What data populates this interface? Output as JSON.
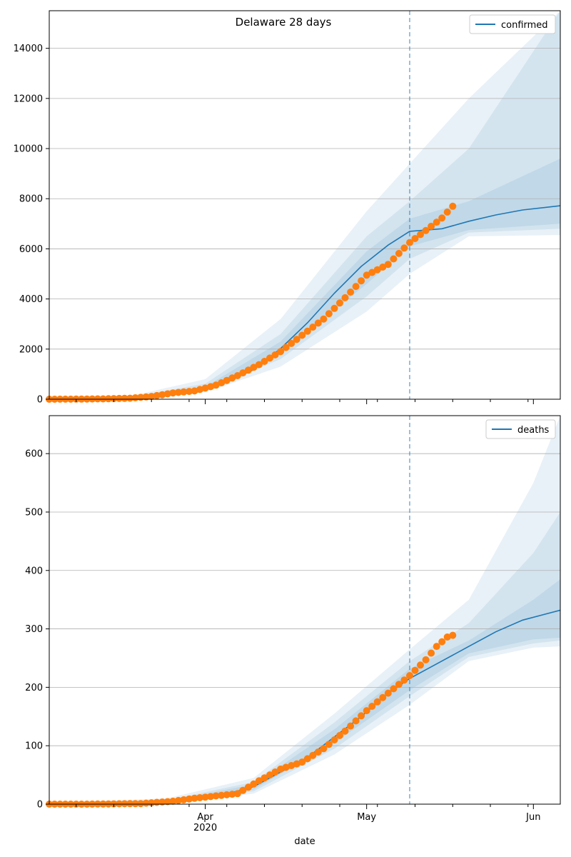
{
  "chart_data": [
    {
      "panel": "confirmed",
      "type": "line",
      "title": "Delaware 28 days",
      "xlabel": "",
      "ylabel": "",
      "x_range": [
        "2020-03-03",
        "2020-06-06"
      ],
      "ylim": [
        0,
        15500
      ],
      "yticks": [
        0,
        2000,
        4000,
        6000,
        8000,
        10000,
        12000,
        14000
      ],
      "grid": "horizontal",
      "legend": {
        "position": "top-right",
        "entries": [
          {
            "label": "confirmed",
            "color": "#1f77b4"
          }
        ]
      },
      "vline": {
        "date": "2020-05-09",
        "color": "#1f77b4",
        "style": "dashed"
      },
      "series": [
        {
          "name": "confirmed",
          "kind": "line",
          "color": "#1f77b4",
          "x": [
            "2020-03-03",
            "2020-03-11",
            "2020-03-18",
            "2020-03-25",
            "2020-04-01",
            "2020-04-05",
            "2020-04-10",
            "2020-04-15",
            "2020-04-20",
            "2020-04-25",
            "2020-04-30",
            "2020-05-05",
            "2020-05-09",
            "2020-05-15",
            "2020-05-20",
            "2020-05-25",
            "2020-05-30",
            "2020-06-06"
          ],
          "y": [
            0,
            10,
            50,
            200,
            420,
            680,
            1180,
            2020,
            3050,
            4230,
            5300,
            6150,
            6700,
            6800,
            7100,
            7350,
            7550,
            7720
          ]
        },
        {
          "name": "",
          "kind": "scatter",
          "color": "#ff7f0e",
          "x": [
            "2020-03-03",
            "2020-03-08",
            "2020-03-13",
            "2020-03-18",
            "2020-03-22",
            "2020-03-26",
            "2020-03-30",
            "2020-04-03",
            "2020-04-07",
            "2020-04-11",
            "2020-04-15",
            "2020-04-19",
            "2020-04-23",
            "2020-04-27",
            "2020-05-01",
            "2020-05-05",
            "2020-05-09",
            "2020-05-12",
            "2020-05-15",
            "2020-05-17"
          ],
          "y": [
            0,
            5,
            15,
            40,
            110,
            250,
            330,
            560,
            940,
            1380,
            1900,
            2550,
            3200,
            4050,
            4950,
            5380,
            6250,
            6730,
            7230,
            7700
          ]
        }
      ],
      "bands": [
        {
          "x": [
            "2020-03-03",
            "2020-03-18",
            "2020-04-01",
            "2020-04-15",
            "2020-05-01",
            "2020-05-09",
            "2020-05-20",
            "2020-06-06"
          ],
          "lower": [
            0,
            30,
            280,
            1300,
            3500,
            5000,
            6500,
            6550
          ],
          "upper": [
            20,
            120,
            800,
            3200,
            7500,
            9400,
            12000,
            15500
          ]
        },
        {
          "x": [
            "2020-03-03",
            "2020-03-18",
            "2020-04-01",
            "2020-04-15",
            "2020-05-01",
            "2020-05-09",
            "2020-05-20",
            "2020-06-06"
          ],
          "lower": [
            0,
            40,
            340,
            1600,
            4100,
            5600,
            6650,
            6800
          ],
          "upper": [
            15,
            90,
            620,
            2600,
            6500,
            7900,
            10000,
            15500
          ]
        },
        {
          "x": [
            "2020-03-03",
            "2020-03-18",
            "2020-04-01",
            "2020-04-15",
            "2020-05-01",
            "2020-05-09",
            "2020-05-20",
            "2020-06-06"
          ],
          "lower": [
            0,
            45,
            380,
            1800,
            4600,
            6100,
            6750,
            7000
          ],
          "upper": [
            12,
            70,
            500,
            2300,
            5900,
            7200,
            7900,
            9600
          ]
        }
      ]
    },
    {
      "panel": "deaths",
      "type": "line",
      "title": "",
      "xlabel": "date",
      "ylabel": "",
      "x_range": [
        "2020-03-03",
        "2020-06-06"
      ],
      "ylim": [
        0,
        665
      ],
      "yticks": [
        0,
        100,
        200,
        300,
        400,
        500,
        600
      ],
      "xticks": [
        {
          "date": "2020-04-01",
          "label": "Apr",
          "sublabel": "2020"
        },
        {
          "date": "2020-05-01",
          "label": "May",
          "sublabel": ""
        },
        {
          "date": "2020-06-01",
          "label": "Jun",
          "sublabel": ""
        }
      ],
      "grid": "horizontal",
      "legend": {
        "position": "top-right",
        "entries": [
          {
            "label": "deaths",
            "color": "#1f77b4"
          }
        ]
      },
      "vline": {
        "date": "2020-05-09",
        "color": "#1f77b4",
        "style": "dashed"
      },
      "series": [
        {
          "name": "deaths",
          "kind": "line",
          "color": "#1f77b4",
          "x": [
            "2020-03-03",
            "2020-03-20",
            "2020-03-28",
            "2020-04-04",
            "2020-04-10",
            "2020-04-15",
            "2020-04-20",
            "2020-04-25",
            "2020-04-30",
            "2020-05-05",
            "2020-05-09",
            "2020-05-15",
            "2020-05-20",
            "2020-05-25",
            "2020-05-30",
            "2020-06-06"
          ],
          "y": [
            0,
            1,
            6,
            15,
            30,
            55,
            80,
            115,
            150,
            190,
            215,
            245,
            270,
            295,
            315,
            332
          ]
        },
        {
          "name": "",
          "kind": "scatter",
          "color": "#ff7f0e",
          "x": [
            "2020-03-03",
            "2020-03-10",
            "2020-03-20",
            "2020-03-26",
            "2020-03-30",
            "2020-04-03",
            "2020-04-07",
            "2020-04-11",
            "2020-04-15",
            "2020-04-19",
            "2020-04-23",
            "2020-04-27",
            "2020-05-01",
            "2020-05-05",
            "2020-05-09",
            "2020-05-12",
            "2020-05-14",
            "2020-05-16",
            "2020-05-17"
          ],
          "y": [
            0,
            0,
            1,
            5,
            10,
            14,
            18,
            40,
            60,
            72,
            95,
            125,
            160,
            190,
            220,
            247,
            270,
            286,
            289
          ]
        }
      ],
      "bands": [
        {
          "x": [
            "2020-03-03",
            "2020-03-25",
            "2020-04-10",
            "2020-04-25",
            "2020-05-09",
            "2020-05-20",
            "2020-06-01",
            "2020-06-06"
          ],
          "lower": [
            0,
            0,
            18,
            85,
            170,
            245,
            268,
            270
          ],
          "upper": [
            2,
            10,
            45,
            155,
            265,
            350,
            550,
            665
          ]
        },
        {
          "x": [
            "2020-03-03",
            "2020-03-25",
            "2020-04-10",
            "2020-04-25",
            "2020-05-09",
            "2020-05-20",
            "2020-06-01",
            "2020-06-06"
          ],
          "lower": [
            0,
            1,
            22,
            95,
            185,
            252,
            275,
            280
          ],
          "upper": [
            1,
            7,
            38,
            140,
            245,
            310,
            430,
            500
          ]
        },
        {
          "x": [
            "2020-03-03",
            "2020-03-25",
            "2020-04-10",
            "2020-04-25",
            "2020-05-09",
            "2020-05-20",
            "2020-06-01",
            "2020-06-06"
          ],
          "lower": [
            0,
            2,
            25,
            105,
            195,
            258,
            282,
            285
          ],
          "upper": [
            1,
            5,
            34,
            128,
            232,
            280,
            350,
            385
          ]
        }
      ]
    }
  ]
}
